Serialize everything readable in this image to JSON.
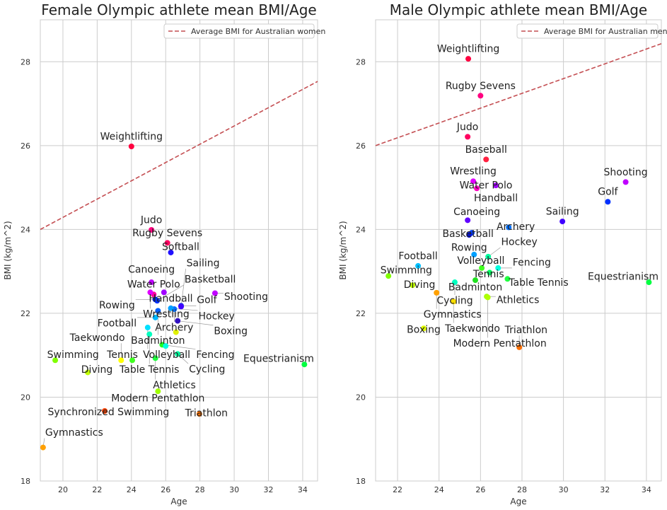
{
  "chart_data": [
    {
      "type": "scatter",
      "title": "Female Olympic athlete mean BMI/Age",
      "xlabel": "Age",
      "ylabel": "BMI (kg/m^2)",
      "xlim": [
        18.68,
        34.87
      ],
      "ylim": [
        18,
        29
      ],
      "xticks": [
        20,
        22,
        24,
        26,
        28,
        30,
        32,
        34
      ],
      "yticks": [
        18,
        20,
        22,
        24,
        26,
        28
      ],
      "grid": true,
      "legend_position": "top-right",
      "reference_line": {
        "name": "Average BMI for Australian women",
        "color": "#c44e52",
        "style": "dashed",
        "points": [
          [
            18.68,
            24.0
          ],
          [
            34.87,
            27.53
          ]
        ]
      },
      "points": [
        {
          "label": "Weightlifting",
          "x": 24.0,
          "y": 25.98,
          "color": "#ff0040"
        },
        {
          "label": "Judo",
          "x": 25.17,
          "y": 23.99,
          "color": "#ff0080"
        },
        {
          "label": "Rugby Sevens",
          "x": 26.1,
          "y": 23.68,
          "color": "#ff0060"
        },
        {
          "label": "Softball",
          "x": 26.3,
          "y": 23.45,
          "color": "#2010ff"
        },
        {
          "label": "Water Polo",
          "x": 25.3,
          "y": 22.45,
          "color": "#ff00a0"
        },
        {
          "label": "Handball",
          "x": 25.9,
          "y": 22.5,
          "color": "#a000ff"
        },
        {
          "label": "Canoeing",
          "x": 25.17,
          "y": 22.74,
          "color": "#c000ff"
        },
        {
          "label": "Wrestling",
          "x": 25.1,
          "y": 22.5,
          "color": "#e000ff"
        },
        {
          "label": "Golf",
          "x": 26.9,
          "y": 22.18,
          "color": "#1830e0"
        },
        {
          "label": "Rowing",
          "x": 25.4,
          "y": 22.33,
          "color": "#0018c0"
        },
        {
          "label": "Archery",
          "x": 26.5,
          "y": 22.1,
          "color": "#0070ff"
        },
        {
          "label": "Basketball",
          "x": 25.5,
          "y": 22.3,
          "color": "#0030ff"
        },
        {
          "label": "Hockey",
          "x": 26.3,
          "y": 22.12,
          "color": "#00a0ff"
        },
        {
          "label": "Sailing",
          "x": 26.9,
          "y": 22.16,
          "color": "#4000ff"
        },
        {
          "label": "Badminton",
          "x": 25.55,
          "y": 22.06,
          "color": "#0060ff"
        },
        {
          "label": "Football",
          "x": 25.4,
          "y": 21.9,
          "color": "#00b8ff"
        },
        {
          "label": "Boxing",
          "x": 26.7,
          "y": 21.82,
          "color": "#3010c0"
        },
        {
          "label": "Volleyball",
          "x": 24.95,
          "y": 21.66,
          "color": "#00e0ff"
        },
        {
          "label": "Table Tennis",
          "x": 25.05,
          "y": 21.5,
          "color": "#00ffc0"
        },
        {
          "label": "",
          "x": 26.6,
          "y": 21.55,
          "color": "#e0f000"
        },
        {
          "label": "Fencing",
          "x": 25.8,
          "y": 21.25,
          "color": "#20ff20"
        },
        {
          "label": "",
          "x": 26.0,
          "y": 21.22,
          "color": "#00ffe0"
        },
        {
          "label": "Cycling",
          "x": 26.7,
          "y": 21.03,
          "color": "#00ffa0"
        },
        {
          "label": "Tennis",
          "x": 24.05,
          "y": 20.88,
          "color": "#40ff20"
        },
        {
          "label": "Athletics",
          "x": 25.4,
          "y": 20.93,
          "color": "#20ff40"
        },
        {
          "label": "Taekwondo",
          "x": 23.4,
          "y": 20.88,
          "color": "#ffff00"
        },
        {
          "label": "Modern Pentathlon",
          "x": 25.55,
          "y": 20.14,
          "color": "#a0ff00"
        },
        {
          "label": "Swimming",
          "x": 19.55,
          "y": 20.88,
          "color": "#80ff00"
        },
        {
          "label": "Diving",
          "x": 21.45,
          "y": 20.59,
          "color": "#c0ff00"
        },
        {
          "label": "Synchronized Swimming",
          "x": 22.44,
          "y": 19.67,
          "color": "#ff4000"
        },
        {
          "label": "Triathlon",
          "x": 27.97,
          "y": 19.6,
          "color": "#ff7000"
        },
        {
          "label": "Gymnastics",
          "x": 18.84,
          "y": 18.8,
          "color": "#ffa000"
        },
        {
          "label": "Shooting",
          "x": 28.88,
          "y": 22.48,
          "color": "#c000ff"
        },
        {
          "label": "Equestrianism",
          "x": 34.1,
          "y": 20.78,
          "color": "#00ff40"
        }
      ]
    },
    {
      "type": "scatter",
      "title": "Male Olympic athlete mean BMI/Age",
      "xlabel": "Age",
      "ylabel": "BMI (kg/m^2)",
      "xlim": [
        20.94,
        34.72
      ],
      "ylim": [
        18,
        29
      ],
      "xticks": [
        22,
        24,
        26,
        28,
        30,
        32,
        34
      ],
      "yticks": [
        18,
        20,
        22,
        24,
        26,
        28
      ],
      "grid": true,
      "legend_position": "top-right",
      "reference_line": {
        "name": "Average BMI for Australian men",
        "color": "#c44e52",
        "style": "dashed",
        "points": [
          [
            20.94,
            26.0
          ],
          [
            34.72,
            28.43
          ]
        ]
      },
      "points": [
        {
          "label": "Weightlifting",
          "x": 25.41,
          "y": 28.07,
          "color": "#ff0040"
        },
        {
          "label": "Rugby Sevens",
          "x": 26.0,
          "y": 27.19,
          "color": "#ff0080"
        },
        {
          "label": "Judo",
          "x": 25.38,
          "y": 26.21,
          "color": "#ff0060"
        },
        {
          "label": "Baseball",
          "x": 26.27,
          "y": 25.67,
          "color": "#ff2040"
        },
        {
          "label": "Wrestling",
          "x": 25.65,
          "y": 25.15,
          "color": "#e000ff"
        },
        {
          "label": "Water Polo",
          "x": 25.82,
          "y": 24.98,
          "color": "#ff00c0"
        },
        {
          "label": "Handball",
          "x": 26.74,
          "y": 25.05,
          "color": "#a000ff"
        },
        {
          "label": "Shooting",
          "x": 33.0,
          "y": 25.13,
          "color": "#c000ff"
        },
        {
          "label": "Golf",
          "x": 32.14,
          "y": 24.66,
          "color": "#0030ff"
        },
        {
          "label": "Sailing",
          "x": 29.95,
          "y": 24.19,
          "color": "#4000ff"
        },
        {
          "label": "Canoeing",
          "x": 25.38,
          "y": 24.22,
          "color": "#6000ff"
        },
        {
          "label": "Archery",
          "x": 27.36,
          "y": 24.05,
          "color": "#0070ff"
        },
        {
          "label": "Basketball",
          "x": 25.58,
          "y": 23.92,
          "color": "#0040ff"
        },
        {
          "label": "Rowing",
          "x": 25.45,
          "y": 23.87,
          "color": "#0010e0"
        },
        {
          "label": "Volleyball",
          "x": 25.69,
          "y": 23.4,
          "color": "#00a0ff"
        },
        {
          "label": "Hockey",
          "x": 26.37,
          "y": 23.35,
          "color": "#00ffa0"
        },
        {
          "label": "Football",
          "x": 22.99,
          "y": 23.13,
          "color": "#00c0ff"
        },
        {
          "label": "Tennis",
          "x": 26.06,
          "y": 23.08,
          "color": "#40ff20"
        },
        {
          "label": "Fencing",
          "x": 26.85,
          "y": 23.08,
          "color": "#00ffe0"
        },
        {
          "label": "",
          "x": 26.44,
          "y": 22.97,
          "color": "#00ff60"
        },
        {
          "label": "Badminton",
          "x": 25.75,
          "y": 22.79,
          "color": "#20e020"
        },
        {
          "label": "Table Tennis",
          "x": 27.3,
          "y": 22.82,
          "color": "#20ff40"
        },
        {
          "label": "Swimming",
          "x": 21.56,
          "y": 22.89,
          "color": "#80ff00"
        },
        {
          "label": "Diving",
          "x": 22.72,
          "y": 22.67,
          "color": "#c0ff00"
        },
        {
          "label": "Cycling",
          "x": 24.76,
          "y": 22.74,
          "color": "#00ffc0"
        },
        {
          "label": "Gymnastics",
          "x": 23.88,
          "y": 22.49,
          "color": "#ffa000"
        },
        {
          "label": "Taekwondo",
          "x": 24.7,
          "y": 22.28,
          "color": "#ffe000"
        },
        {
          "label": "Athletics",
          "x": 26.3,
          "y": 22.4,
          "color": "#a0ff00"
        },
        {
          "label": "Modern Pentathlon",
          "x": 26.35,
          "y": 22.38,
          "color": "#b0ff00"
        },
        {
          "label": "Boxing",
          "x": 23.26,
          "y": 21.64,
          "color": "#e0ff00"
        },
        {
          "label": "Triathlon",
          "x": 27.87,
          "y": 21.19,
          "color": "#ff7000"
        },
        {
          "label": "Equestrianism",
          "x": 34.12,
          "y": 22.74,
          "color": "#00ff40"
        }
      ]
    }
  ]
}
